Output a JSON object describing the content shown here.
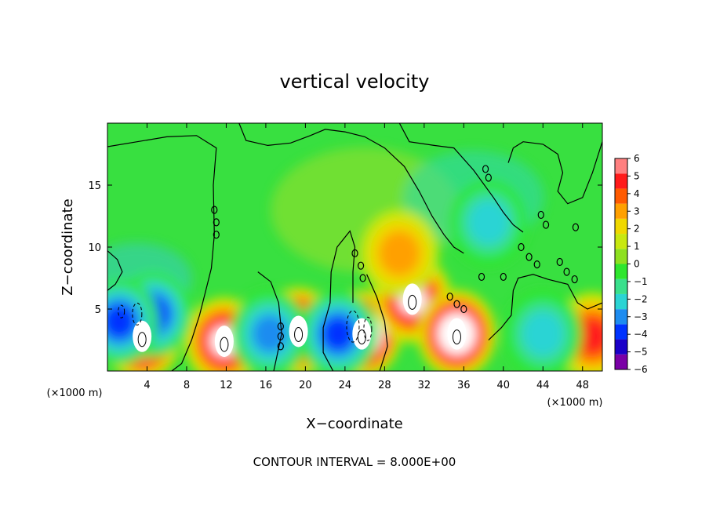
{
  "chart_data": {
    "type": "heatmap",
    "title": "vertical velocity",
    "xlabel": "X−coordinate",
    "ylabel": "Z−coordinate",
    "x_unit_label": "(×1000 m)",
    "footer": "CONTOUR INTERVAL = 8.000E+00",
    "xlim": [
      0,
      50
    ],
    "ylim": [
      0,
      20
    ],
    "x_ticks": [
      4,
      8,
      12,
      16,
      20,
      24,
      28,
      32,
      36,
      40,
      44,
      48
    ],
    "y_ticks": [
      5,
      10,
      15
    ],
    "colorbar": {
      "ticks": [
        6,
        5,
        4,
        3,
        2,
        1,
        0,
        -1,
        -2,
        -3,
        -4,
        -5,
        -6
      ],
      "tick_labels": [
        "6",
        "5",
        "4",
        "3",
        "2",
        "1",
        "0",
        "−1",
        "−2",
        "−3",
        "−4",
        "−5",
        "−6"
      ],
      "range": [
        -6,
        6
      ],
      "colors": [
        "#7a00a6",
        "#1a00c8",
        "#0033ff",
        "#1e8cf0",
        "#2bd4d4",
        "#39e08c",
        "#2ee62e",
        "#8ee020",
        "#c8e810",
        "#f0d800",
        "#ffa000",
        "#ff5a00",
        "#ff1a1a",
        "#ff8080"
      ]
    },
    "features": [
      {
        "kind": "updraft",
        "x": 3.5,
        "z": 2.8,
        "value": 9
      },
      {
        "kind": "updraft",
        "x": 11.8,
        "z": 2.4,
        "value": 7
      },
      {
        "kind": "updraft",
        "x": 19.3,
        "z": 3.2,
        "value": 9
      },
      {
        "kind": "updraft",
        "x": 25.7,
        "z": 3.0,
        "value": 10
      },
      {
        "kind": "updraft",
        "x": 30.8,
        "z": 5.8,
        "value": 7
      },
      {
        "kind": "updraft",
        "x": 35.3,
        "z": 3.0,
        "value": 9
      },
      {
        "kind": "updraft",
        "x": 49.0,
        "z": 2.8,
        "value": 5
      },
      {
        "kind": "updraft",
        "x": 29.5,
        "z": 9.5,
        "value": 3
      },
      {
        "kind": "downdraft",
        "x": 4.6,
        "z": 4.6,
        "value": -5
      },
      {
        "kind": "downdraft",
        "x": 1.2,
        "z": 4.0,
        "value": -5
      },
      {
        "kind": "downdraft",
        "x": 16.4,
        "z": 3.0,
        "value": -4
      },
      {
        "kind": "downdraft",
        "x": 23.3,
        "z": 3.0,
        "value": -5
      },
      {
        "kind": "downdraft",
        "x": 44.0,
        "z": 3.0,
        "value": -3
      },
      {
        "kind": "downdraft",
        "x": 38.5,
        "z": 12.0,
        "value": -2.5
      }
    ]
  }
}
